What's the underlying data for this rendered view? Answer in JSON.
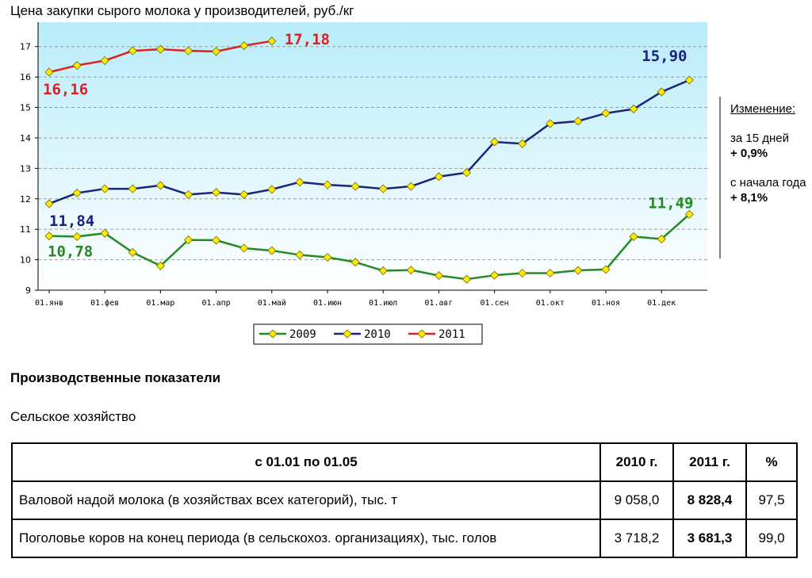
{
  "chart_data": {
    "type": "line",
    "title": "Цена закупки сырого молока у производителей, руб./кг",
    "y_ticks": [
      9,
      10,
      11,
      12,
      13,
      14,
      15,
      16,
      17
    ],
    "ylim": [
      9,
      17.8
    ],
    "x_ticks": [
      "01.янв",
      "01.фев",
      "01.мар",
      "01.апр",
      "01.май",
      "01.июн",
      "01.июл",
      "01.авг",
      "01.сен",
      "01.окт",
      "01.ноя",
      "01.дек"
    ],
    "grid": "horizontal dashed",
    "legend_position": "bottom",
    "series": [
      {
        "name": "2009",
        "color": "#228B22",
        "end_label": "11,49",
        "start_label": "10,78",
        "points": [
          [
            0,
            10.78
          ],
          [
            0.5,
            10.76
          ],
          [
            1,
            10.87
          ],
          [
            1.5,
            10.24
          ],
          [
            2,
            9.8
          ],
          [
            2.5,
            10.65
          ],
          [
            3,
            10.64
          ],
          [
            3.5,
            10.38
          ],
          [
            4,
            10.3
          ],
          [
            4.5,
            10.16
          ],
          [
            5,
            10.08
          ],
          [
            5.5,
            9.92
          ],
          [
            6,
            9.64
          ],
          [
            6.5,
            9.66
          ],
          [
            7,
            9.48
          ],
          [
            7.5,
            9.36
          ],
          [
            8,
            9.49
          ],
          [
            8.5,
            9.56
          ],
          [
            9,
            9.56
          ],
          [
            9.5,
            9.65
          ],
          [
            10,
            9.68
          ],
          [
            10.5,
            10.76
          ],
          [
            11,
            10.68
          ],
          [
            11.5,
            11.49
          ]
        ]
      },
      {
        "name": "2010",
        "color": "#1a237e",
        "end_label": "15,90",
        "start_label": "11,84",
        "points": [
          [
            0,
            11.84
          ],
          [
            0.5,
            12.19
          ],
          [
            1,
            12.33
          ],
          [
            1.5,
            12.33
          ],
          [
            2,
            12.44
          ],
          [
            2.5,
            12.14
          ],
          [
            3,
            12.21
          ],
          [
            3.5,
            12.14
          ],
          [
            4,
            12.31
          ],
          [
            4.5,
            12.55
          ],
          [
            5,
            12.46
          ],
          [
            5.5,
            12.41
          ],
          [
            6,
            12.33
          ],
          [
            6.5,
            12.41
          ],
          [
            7,
            12.73
          ],
          [
            7.5,
            12.86
          ],
          [
            8,
            13.87
          ],
          [
            8.5,
            13.81
          ],
          [
            9,
            14.47
          ],
          [
            9.5,
            14.55
          ],
          [
            10,
            14.81
          ],
          [
            10.5,
            14.95
          ],
          [
            11,
            15.51
          ],
          [
            11.5,
            15.9
          ]
        ]
      },
      {
        "name": "2011",
        "color": "#e02020",
        "end_label": "17,18",
        "start_label": "16,16",
        "points": [
          [
            0,
            16.16
          ],
          [
            0.5,
            16.38
          ],
          [
            1,
            16.54
          ],
          [
            1.5,
            16.86
          ],
          [
            2,
            16.91
          ],
          [
            2.5,
            16.86
          ],
          [
            3,
            16.84
          ],
          [
            3.5,
            17.03
          ],
          [
            4,
            17.18
          ]
        ]
      }
    ]
  },
  "side_panel": {
    "heading": "Изменение:",
    "period1_label": "за 15 дней",
    "period1_value": "+ 0,9%",
    "period2_label": "с начала года",
    "period2_value": "+ 8,1%"
  },
  "section_title": "Производственные показатели",
  "section_subtitle": "Сельское хозяйство",
  "table": {
    "headers": [
      "с 01.01 по 01.05",
      "2010 г.",
      "2011 г.",
      "%"
    ],
    "rows": [
      [
        "Валовой надой молока (в хозяйствах всех категорий), тыс. т",
        "9 058,0",
        "8 828,4",
        "97,5"
      ],
      [
        "Поголовье коров на конец периода (в сельскохоз. организациях), тыс. голов",
        "3 718,2",
        "3 681,3",
        "99,0"
      ]
    ]
  }
}
